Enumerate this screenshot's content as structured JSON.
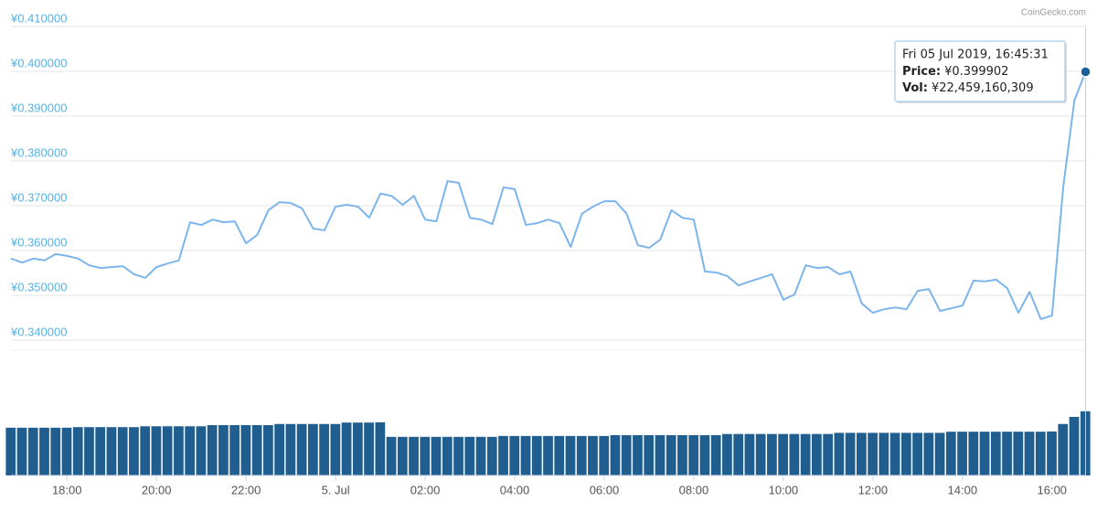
{
  "chart_data": {
    "type": "line",
    "credit": "CoinGecko.com",
    "color": "#7cb5ec",
    "grid": true,
    "x": [
      16.75,
      17,
      17.25,
      17.5,
      17.75,
      18,
      18.25,
      18.5,
      18.75,
      19,
      19.25,
      19.5,
      19.75,
      20,
      20.25,
      20.5,
      20.75,
      21,
      21.25,
      21.5,
      21.75,
      22,
      22.25,
      22.5,
      22.75,
      23,
      23.25,
      23.5,
      23.75,
      24,
      24.25,
      24.5,
      24.75,
      25,
      25.25,
      25.5,
      25.75,
      26,
      26.25,
      26.5,
      26.75,
      27,
      27.25,
      27.5,
      27.75,
      28,
      28.25,
      28.5,
      28.75,
      29,
      29.25,
      29.5,
      29.75,
      30,
      30.25,
      30.5,
      30.75,
      31,
      31.25,
      31.5,
      31.75,
      32,
      32.25,
      32.5,
      32.75,
      33,
      33.25,
      33.5,
      33.75,
      34,
      34.25,
      34.5,
      34.75,
      35,
      35.25,
      35.5,
      35.75,
      36,
      36.25,
      36.5,
      36.75,
      37,
      37.25,
      37.5,
      37.75,
      38,
      38.25,
      38.5,
      38.75,
      39,
      39.25,
      39.5,
      39.75,
      40,
      40.25,
      40.5,
      40.75
    ],
    "values": [
      0.3582,
      0.3573,
      0.3582,
      0.3578,
      0.3592,
      0.3588,
      0.3582,
      0.3567,
      0.3561,
      0.3563,
      0.3565,
      0.3547,
      0.3539,
      0.3563,
      0.3571,
      0.3578,
      0.3663,
      0.3657,
      0.3669,
      0.3663,
      0.3665,
      0.3616,
      0.3635,
      0.369,
      0.3708,
      0.3706,
      0.3694,
      0.3649,
      0.3645,
      0.3698,
      0.3702,
      0.3698,
      0.3673,
      0.3727,
      0.3722,
      0.3702,
      0.3722,
      0.3669,
      0.3665,
      0.3755,
      0.3751,
      0.3673,
      0.3669,
      0.3659,
      0.3741,
      0.3737,
      0.3657,
      0.3661,
      0.3669,
      0.3661,
      0.3608,
      0.3682,
      0.3698,
      0.371,
      0.371,
      0.3682,
      0.3612,
      0.3606,
      0.3624,
      0.369,
      0.3673,
      0.3669,
      0.3553,
      0.3551,
      0.3543,
      0.3522,
      0.3531,
      0.3539,
      0.3547,
      0.349,
      0.3502,
      0.3567,
      0.3561,
      0.3563,
      0.3547,
      0.3553,
      0.3482,
      0.3461,
      0.3469,
      0.3473,
      0.3469,
      0.351,
      0.3514,
      0.3465,
      0.3471,
      0.3477,
      0.3533,
      0.3531,
      0.3535,
      0.3516,
      0.3461,
      0.3508,
      0.3447,
      0.3455,
      0.3741,
      0.3935,
      0.399902
    ],
    "xlim": [
      16.75,
      40.76
    ],
    "xticks": [
      {
        "value": 18,
        "label": "18:00"
      },
      {
        "value": 20,
        "label": "20:00"
      },
      {
        "value": 22,
        "label": "22:00"
      },
      {
        "value": 24,
        "label": "5. Jul"
      },
      {
        "value": 26,
        "label": "02:00"
      },
      {
        "value": 28,
        "label": "04:00"
      },
      {
        "value": 30,
        "label": "06:00"
      },
      {
        "value": 32,
        "label": "08:00"
      },
      {
        "value": 34,
        "label": "10:00"
      },
      {
        "value": 36,
        "label": "12:00"
      },
      {
        "value": 38,
        "label": "14:00"
      },
      {
        "value": 40,
        "label": "16:00"
      }
    ],
    "ylim": [
      0.34,
      0.41
    ],
    "yticks": [
      {
        "value": 0.34,
        "label": "¥0.340000"
      },
      {
        "value": 0.35,
        "label": "¥0.350000"
      },
      {
        "value": 0.36,
        "label": "¥0.360000"
      },
      {
        "value": 0.37,
        "label": "¥0.370000"
      },
      {
        "value": 0.38,
        "label": "¥0.380000"
      },
      {
        "value": 0.39,
        "label": "¥0.390000"
      },
      {
        "value": 0.4,
        "label": "¥0.400000"
      },
      {
        "value": 0.41,
        "label": "¥0.410000"
      }
    ],
    "volume": {
      "color": "#1f5e8f",
      "ylim": [
        0,
        40000000000
      ],
      "values": [
        16700000000,
        16700000000,
        16700000000,
        16700000000,
        16700000000,
        16700000000,
        16900000000,
        16900000000,
        16900000000,
        16900000000,
        16900000000,
        16900000000,
        17200000000,
        17200000000,
        17200000000,
        17200000000,
        17200000000,
        17200000000,
        17600000000,
        17600000000,
        17600000000,
        17600000000,
        17600000000,
        17600000000,
        18000000000,
        18000000000,
        18000000000,
        18000000000,
        18000000000,
        18000000000,
        18500000000,
        18500000000,
        18500000000,
        18600000000,
        13500000000,
        13500000000,
        13500000000,
        13500000000,
        13500000000,
        13500000000,
        13500000000,
        13500000000,
        13500000000,
        13500000000,
        13800000000,
        13800000000,
        13800000000,
        13800000000,
        13800000000,
        13800000000,
        13800000000,
        13800000000,
        13800000000,
        13800000000,
        14100000000,
        14100000000,
        14100000000,
        14100000000,
        14100000000,
        14100000000,
        14100000000,
        14100000000,
        14100000000,
        14100000000,
        14500000000,
        14500000000,
        14500000000,
        14500000000,
        14500000000,
        14500000000,
        14500000000,
        14500000000,
        14500000000,
        14500000000,
        14900000000,
        14900000000,
        14900000000,
        14900000000,
        14900000000,
        14900000000,
        14900000000,
        14900000000,
        14900000000,
        14900000000,
        15300000000,
        15300000000,
        15300000000,
        15300000000,
        15300000000,
        15300000000,
        15300000000,
        15300000000,
        15300000000,
        15400000000,
        18000000000,
        20500000000,
        22459160309
      ]
    },
    "tooltip": {
      "date": "Fri 05 Jul 2019, 16:45:31",
      "price_label": "Price:",
      "price": "¥0.399902",
      "volume_label": "Vol:",
      "volume": "¥22,459,160,309"
    }
  }
}
